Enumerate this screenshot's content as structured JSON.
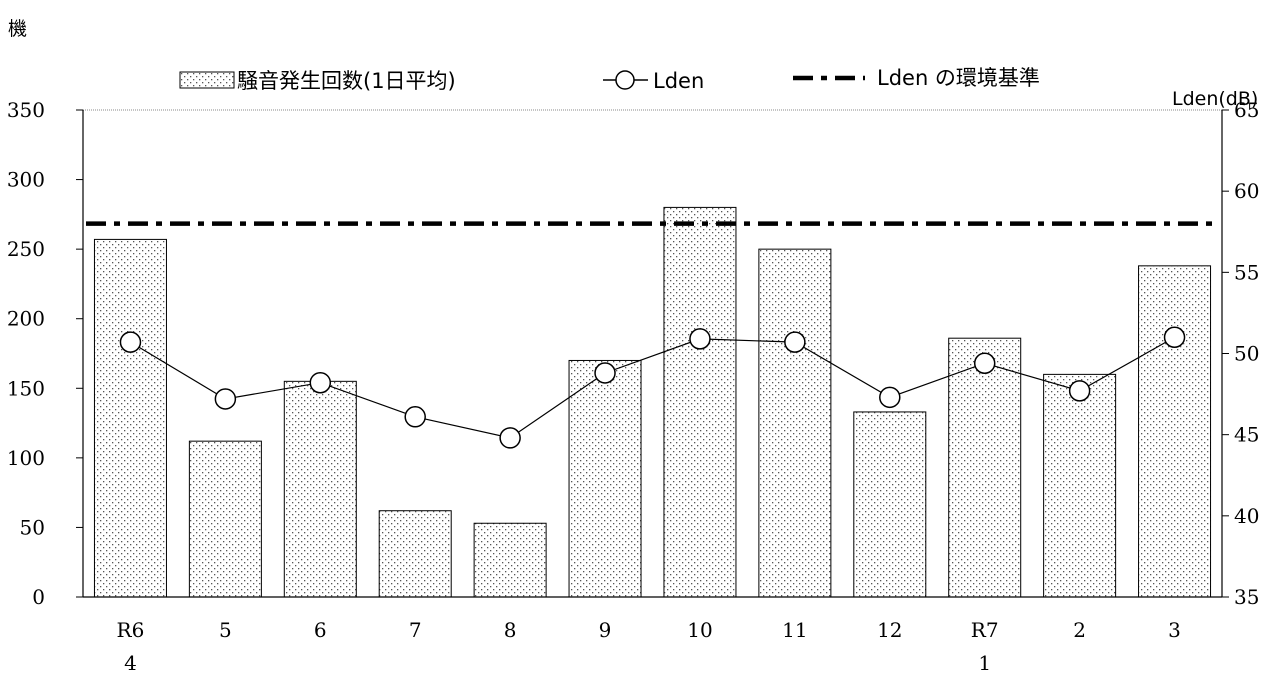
{
  "chart_data": {
    "type": "bar",
    "left_axis_unit": "機",
    "right_axis_unit": "Lden(dB)",
    "categories": [
      [
        "R6",
        "4"
      ],
      [
        "5"
      ],
      [
        "6"
      ],
      [
        "7"
      ],
      [
        "8"
      ],
      [
        "9"
      ],
      [
        "10"
      ],
      [
        "11"
      ],
      [
        "12"
      ],
      [
        "R7",
        "1"
      ],
      [
        "2"
      ],
      [
        "3"
      ]
    ],
    "series": [
      {
        "name": "騒音発生回数(1日平均)",
        "type": "bar",
        "axis": "left",
        "values": [
          257,
          112,
          155,
          62,
          53,
          170,
          280,
          250,
          133,
          186,
          160,
          238
        ]
      },
      {
        "name": "Lden",
        "type": "line",
        "axis": "right",
        "marker": "hollow-circle",
        "values": [
          50.7,
          47.2,
          48.2,
          46.1,
          44.8,
          48.8,
          50.9,
          50.7,
          47.3,
          49.4,
          47.7,
          51.0
        ]
      },
      {
        "name": "Lden の環境基準",
        "type": "reference-line",
        "axis": "right",
        "style": "dash-dot",
        "value": 58
      }
    ],
    "yleft": {
      "min": 0,
      "max": 350,
      "step": 50
    },
    "yright": {
      "min": 35,
      "max": 65,
      "step": 5
    },
    "legend_position": "top"
  }
}
